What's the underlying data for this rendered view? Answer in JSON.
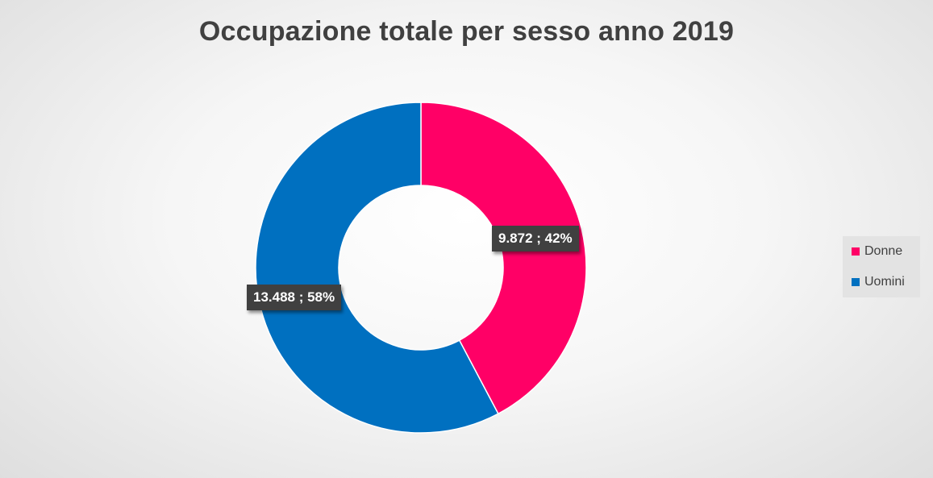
{
  "chart_data": {
    "type": "pie",
    "variant": "donut",
    "title": "Occupazione totale per sesso anno 2019",
    "categories": [
      "Donne",
      "Uomini"
    ],
    "values": [
      9872,
      13488
    ],
    "percentages": [
      42,
      58
    ],
    "data_labels": [
      "9.872 ; 42%",
      "13.488 ; 58%"
    ],
    "colors": [
      "#ff0066",
      "#0070c0"
    ],
    "legend": {
      "position": "right",
      "entries": [
        "Donne",
        "Uomini"
      ]
    }
  }
}
